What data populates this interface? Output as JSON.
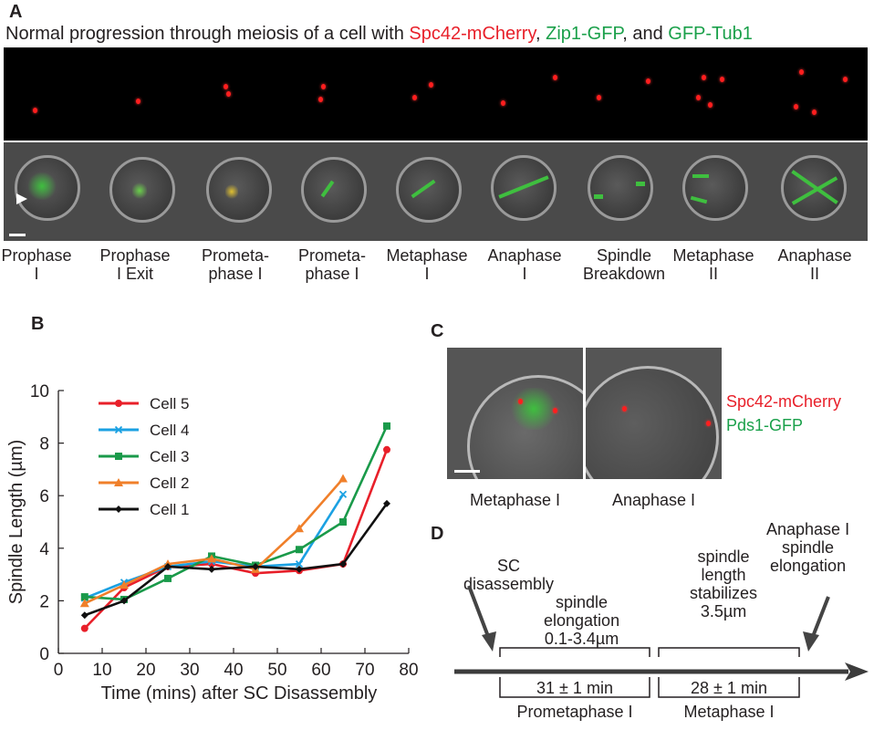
{
  "panel_a": {
    "letter": "A",
    "title_prefix": "Normal progression through meiosis of a cell with ",
    "title_red": "Spc42-mCherry",
    "title_sep1": ", ",
    "title_green1": "Zip1-GFP",
    "title_sep2": ", and ",
    "title_green2": "GFP-Tub1",
    "stages": [
      {
        "line1": "Prophase",
        "line2": "I"
      },
      {
        "line1": "Prophase",
        "line2": "I Exit"
      },
      {
        "line1": "Prometa-",
        "line2": "phase I"
      },
      {
        "line1": "Prometa-",
        "line2": "phase I"
      },
      {
        "line1": "Metaphase",
        "line2": "I"
      },
      {
        "line1": "Anaphase",
        "line2": "I"
      },
      {
        "line1": "Spindle",
        "line2": "Breakdown"
      },
      {
        "line1": "Metaphase",
        "line2": "II"
      },
      {
        "line1": "Anaphase",
        "line2": "II"
      }
    ]
  },
  "panel_b": {
    "letter": "B",
    "chart_data": {
      "type": "line",
      "title": "",
      "xlabel": "Time (mins) after SC Disassembly",
      "ylabel": "Spindle Length (µm)",
      "xlim": [
        0,
        80
      ],
      "ylim": [
        0,
        10
      ],
      "xticks": [
        0,
        10,
        20,
        30,
        40,
        50,
        60,
        70,
        80
      ],
      "yticks": [
        0,
        2,
        4,
        6,
        8,
        10
      ],
      "grid": false,
      "legend_position": "top-left",
      "series": [
        {
          "name": "Cell 5",
          "color": "#e8202a",
          "marker": "circle",
          "x": [
            6,
            15,
            25,
            35,
            45,
            55,
            65,
            75
          ],
          "y": [
            0.95,
            2.5,
            3.3,
            3.4,
            3.05,
            3.15,
            3.4,
            7.75
          ]
        },
        {
          "name": "Cell 4",
          "color": "#1ba1e2",
          "marker": "x",
          "x": [
            6,
            15,
            25,
            35,
            45,
            55,
            65
          ],
          "y": [
            2.1,
            2.7,
            3.3,
            3.5,
            3.3,
            3.4,
            6.05
          ]
        },
        {
          "name": "Cell 3",
          "color": "#1a9a4a",
          "marker": "square",
          "x": [
            6,
            15,
            25,
            35,
            45,
            55,
            65,
            75
          ],
          "y": [
            2.15,
            2.05,
            2.85,
            3.7,
            3.35,
            3.95,
            5.0,
            8.65
          ]
        },
        {
          "name": "Cell 2",
          "color": "#f07f2a",
          "marker": "triangle",
          "x": [
            6,
            15,
            25,
            35,
            45,
            55,
            65
          ],
          "y": [
            1.9,
            2.6,
            3.4,
            3.6,
            3.2,
            4.75,
            6.65
          ]
        },
        {
          "name": "Cell 1",
          "color": "#111111",
          "marker": "diamond",
          "x": [
            6,
            15,
            25,
            35,
            45,
            55,
            65,
            75
          ],
          "y": [
            1.45,
            2.0,
            3.3,
            3.2,
            3.3,
            3.2,
            3.4,
            5.7
          ]
        }
      ]
    }
  },
  "panel_c": {
    "letter": "C",
    "label_left": "Metaphase I",
    "label_right": "Anaphase I",
    "legend_red": "Spc42-mCherry",
    "legend_green": "Pds1-GFP"
  },
  "panel_d": {
    "letter": "D",
    "sc_line1": "SC",
    "sc_line2": "disassembly",
    "elong_line1": "spindle",
    "elong_line2": "elongation",
    "elong_line3": "0.1-3.4µm",
    "stab_line1": "spindle",
    "stab_line2": "length",
    "stab_line3": "stabilizes",
    "stab_line4": "3.5µm",
    "ana_line1": "Anaphase I",
    "ana_line2": "spindle",
    "ana_line3": "elongation",
    "dur1": "31 ± 1 min",
    "dur2": "28 ± 1 min",
    "phase1": "Prometaphase I",
    "phase2": "Metaphase I"
  }
}
